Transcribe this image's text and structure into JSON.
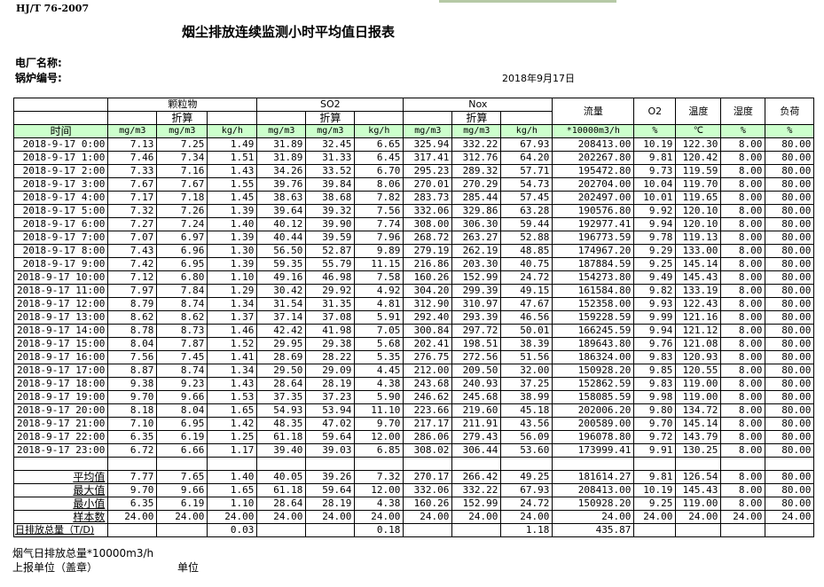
{
  "standard": "HJ/T  76-2007",
  "title": "烟尘排放连续监测小时平均值日报表",
  "plant_label": "电厂名称:",
  "boiler_label": "锅炉编号:",
  "date": "2018年9月17日",
  "headers": {
    "pm": "颗粒物",
    "so2": "SO2",
    "nox": "Nox",
    "converted": "折算",
    "flow": "流量",
    "o2": "O2",
    "temp": "温度",
    "humidity": "湿度",
    "load": "负荷",
    "time": "时间",
    "units": [
      "mg/m3",
      "mg/m3",
      "kg/h",
      "mg/m3",
      "mg/m3",
      "kg/h",
      "mg/m3",
      "mg/m3",
      "kg/h",
      "*10000m3/h",
      "%",
      "℃",
      "%",
      "%"
    ]
  },
  "rows": [
    [
      "2018-9-17 0:00",
      "7.13",
      "7.25",
      "1.49",
      "31.89",
      "32.45",
      "6.65",
      "325.94",
      "332.22",
      "67.93",
      "208413.00",
      "10.19",
      "122.30",
      "8.00",
      "80.00"
    ],
    [
      "2018-9-17 1:00",
      "7.46",
      "7.34",
      "1.51",
      "31.89",
      "31.33",
      "6.45",
      "317.41",
      "312.76",
      "64.20",
      "202267.80",
      "9.81",
      "120.42",
      "8.00",
      "80.00"
    ],
    [
      "2018-9-17 2:00",
      "7.33",
      "7.16",
      "1.43",
      "34.26",
      "33.52",
      "6.70",
      "295.23",
      "289.32",
      "57.71",
      "195472.80",
      "9.73",
      "119.59",
      "8.00",
      "80.00"
    ],
    [
      "2018-9-17 3:00",
      "7.67",
      "7.67",
      "1.55",
      "39.76",
      "39.84",
      "8.06",
      "270.01",
      "270.29",
      "54.73",
      "202704.00",
      "10.04",
      "119.70",
      "8.00",
      "80.00"
    ],
    [
      "2018-9-17 4:00",
      "7.17",
      "7.18",
      "1.45",
      "38.63",
      "38.68",
      "7.82",
      "283.73",
      "285.44",
      "57.45",
      "202497.00",
      "10.01",
      "119.65",
      "8.00",
      "80.00"
    ],
    [
      "2018-9-17 5:00",
      "7.32",
      "7.26",
      "1.39",
      "39.64",
      "39.32",
      "7.56",
      "332.06",
      "329.86",
      "63.28",
      "190576.80",
      "9.92",
      "120.10",
      "8.00",
      "80.00"
    ],
    [
      "2018-9-17 6:00",
      "7.27",
      "7.24",
      "1.40",
      "40.12",
      "39.90",
      "7.74",
      "308.00",
      "306.30",
      "59.44",
      "192977.41",
      "9.94",
      "120.10",
      "8.00",
      "80.00"
    ],
    [
      "2018-9-17 7:00",
      "7.07",
      "6.97",
      "1.39",
      "40.44",
      "39.59",
      "7.96",
      "268.72",
      "263.27",
      "52.88",
      "196773.59",
      "9.78",
      "119.13",
      "8.00",
      "80.00"
    ],
    [
      "2018-9-17 8:00",
      "7.43",
      "6.96",
      "1.30",
      "56.50",
      "52.87",
      "9.89",
      "279.19",
      "262.19",
      "48.85",
      "174967.20",
      "9.29",
      "133.00",
      "8.00",
      "80.00"
    ],
    [
      "2018-9-17 9:00",
      "7.42",
      "6.95",
      "1.39",
      "59.35",
      "55.79",
      "11.15",
      "216.86",
      "203.30",
      "40.75",
      "187884.59",
      "9.25",
      "145.14",
      "8.00",
      "80.00"
    ],
    [
      "2018-9-17 10:00",
      "7.12",
      "6.80",
      "1.10",
      "49.16",
      "46.98",
      "7.58",
      "160.26",
      "152.99",
      "24.72",
      "154273.80",
      "9.49",
      "145.43",
      "8.00",
      "80.00"
    ],
    [
      "2018-9-17 11:00",
      "7.97",
      "7.84",
      "1.29",
      "30.42",
      "29.92",
      "4.92",
      "304.20",
      "299.39",
      "49.15",
      "161584.80",
      "9.82",
      "133.19",
      "8.00",
      "80.00"
    ],
    [
      "2018-9-17 12:00",
      "8.79",
      "8.74",
      "1.34",
      "31.54",
      "31.35",
      "4.81",
      "312.90",
      "310.97",
      "47.67",
      "152358.00",
      "9.93",
      "122.43",
      "8.00",
      "80.00"
    ],
    [
      "2018-9-17 13:00",
      "8.62",
      "8.62",
      "1.37",
      "37.14",
      "37.08",
      "5.91",
      "292.40",
      "293.39",
      "46.56",
      "159228.59",
      "9.99",
      "121.16",
      "8.00",
      "80.00"
    ],
    [
      "2018-9-17 14:00",
      "8.78",
      "8.73",
      "1.46",
      "42.42",
      "41.98",
      "7.05",
      "300.84",
      "297.72",
      "50.01",
      "166245.59",
      "9.94",
      "121.12",
      "8.00",
      "80.00"
    ],
    [
      "2018-9-17 15:00",
      "8.04",
      "7.87",
      "1.52",
      "29.95",
      "29.38",
      "5.68",
      "202.41",
      "198.51",
      "38.39",
      "189643.80",
      "9.76",
      "121.08",
      "8.00",
      "80.00"
    ],
    [
      "2018-9-17 16:00",
      "7.56",
      "7.45",
      "1.41",
      "28.69",
      "28.22",
      "5.35",
      "276.75",
      "272.56",
      "51.56",
      "186324.00",
      "9.83",
      "120.93",
      "8.00",
      "80.00"
    ],
    [
      "2018-9-17 17:00",
      "8.87",
      "8.74",
      "1.34",
      "29.50",
      "29.09",
      "4.45",
      "212.00",
      "209.50",
      "32.00",
      "150928.20",
      "9.85",
      "120.55",
      "8.00",
      "80.00"
    ],
    [
      "2018-9-17 18:00",
      "9.38",
      "9.23",
      "1.43",
      "28.64",
      "28.19",
      "4.38",
      "243.68",
      "240.93",
      "37.25",
      "152862.59",
      "9.83",
      "119.00",
      "8.00",
      "80.00"
    ],
    [
      "2018-9-17 19:00",
      "9.70",
      "9.66",
      "1.53",
      "37.35",
      "37.23",
      "5.90",
      "246.62",
      "245.68",
      "38.99",
      "158085.59",
      "9.98",
      "119.00",
      "8.00",
      "80.00"
    ],
    [
      "2018-9-17 20:00",
      "8.18",
      "8.04",
      "1.65",
      "54.93",
      "53.94",
      "11.10",
      "223.66",
      "219.60",
      "45.18",
      "202006.20",
      "9.80",
      "134.72",
      "8.00",
      "80.00"
    ],
    [
      "2018-9-17 21:00",
      "7.10",
      "6.95",
      "1.42",
      "48.35",
      "47.02",
      "9.70",
      "217.17",
      "211.91",
      "43.56",
      "200589.00",
      "9.70",
      "145.14",
      "8.00",
      "80.00"
    ],
    [
      "2018-9-17 22:00",
      "6.35",
      "6.19",
      "1.25",
      "61.18",
      "59.64",
      "12.00",
      "286.06",
      "279.43",
      "56.09",
      "196078.80",
      "9.72",
      "143.79",
      "8.00",
      "80.00"
    ],
    [
      "2018-9-17 23:00",
      "6.72",
      "6.66",
      "1.17",
      "39.40",
      "39.03",
      "6.85",
      "308.02",
      "306.44",
      "53.60",
      "173999.41",
      "9.91",
      "130.25",
      "8.00",
      "80.00"
    ]
  ],
  "summary": [
    [
      "平均值",
      "7.77",
      "7.65",
      "1.40",
      "40.05",
      "39.26",
      "7.32",
      "270.17",
      "266.42",
      "49.25",
      "181614.27",
      "9.81",
      "126.54",
      "8.00",
      "80.00"
    ],
    [
      "最大值",
      "9.70",
      "9.66",
      "1.65",
      "61.18",
      "59.64",
      "12.00",
      "332.06",
      "332.22",
      "67.93",
      "208413.00",
      "10.19",
      "145.43",
      "8.00",
      "80.00"
    ],
    [
      "最小值",
      "6.35",
      "6.19",
      "1.10",
      "28.64",
      "28.19",
      "4.38",
      "160.26",
      "152.99",
      "24.72",
      "150928.20",
      "9.25",
      "119.00",
      "8.00",
      "80.00"
    ],
    [
      "样本数",
      "24.00",
      "24.00",
      "24.00",
      "24.00",
      "24.00",
      "24.00",
      "24.00",
      "24.00",
      "24.00",
      "24.00",
      "24.00",
      "24.00",
      "24.00",
      "24.00"
    ]
  ],
  "daily_total": [
    "日排放总量（T/D)",
    "",
    "",
    "0.03",
    "",
    "",
    "0.18",
    "",
    "",
    "1.18",
    "435.87",
    "",
    "",
    "",
    ""
  ],
  "footer": {
    "flue_gas_total": "烟气日排放总量*10000m3/h",
    "reporting_unit": "上报单位（盖章）",
    "unit": "单位"
  }
}
